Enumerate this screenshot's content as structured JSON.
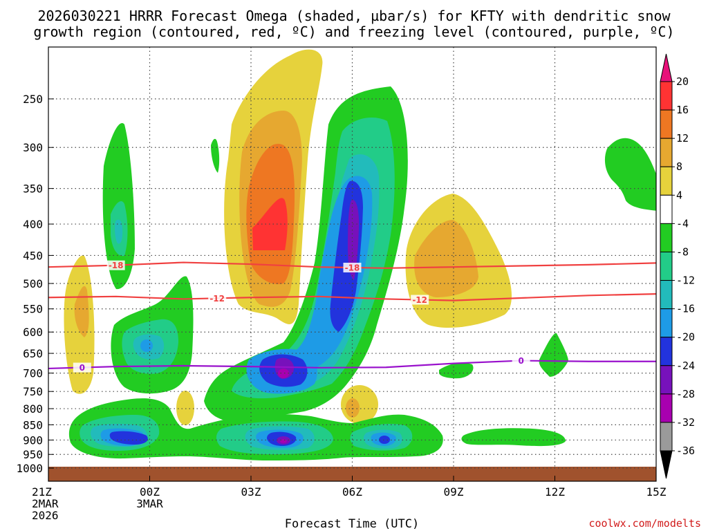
{
  "chart_data": {
    "type": "heatmap",
    "title_lines": [
      "2026030221 HRRR Forecast Omega (shaded, µbar/s) for KFTY with dendritic snow",
      "growth region (contoured, red, ºC) and freezing level (contoured, purple, ºC)"
    ],
    "xlabel": "Forecast Time (UTC)",
    "x_ticks": [
      {
        "hour": 0,
        "lines": [
          "21Z",
          "2MAR",
          "2026"
        ]
      },
      {
        "hour": 3,
        "lines": [
          "00Z",
          "3MAR"
        ]
      },
      {
        "hour": 6,
        "lines": [
          "03Z"
        ]
      },
      {
        "hour": 9,
        "lines": [
          "06Z"
        ]
      },
      {
        "hour": 12,
        "lines": [
          "09Z"
        ]
      },
      {
        "hour": 15,
        "lines": [
          "12Z"
        ]
      },
      {
        "hour": 18,
        "lines": [
          "15Z"
        ]
      }
    ],
    "xlim_hours": [
      0,
      18
    ],
    "y_ticks": [
      250,
      300,
      350,
      400,
      450,
      500,
      550,
      600,
      650,
      700,
      750,
      800,
      850,
      900,
      950,
      1000
    ],
    "ylim_hPa": [
      1000,
      200
    ],
    "colorbar": {
      "levels": [
        20,
        16,
        12,
        8,
        4,
        -4,
        -8,
        -12,
        -16,
        -20,
        -24,
        -28,
        -32,
        -36
      ],
      "colors": [
        "#ff3333",
        "#ee7722",
        "#e6a830",
        "#e6d23c",
        "#ffffff",
        "#22cc22",
        "#22cc88",
        "#22bbbb",
        "#1e9be6",
        "#2233dd",
        "#7711bb",
        "#a800b0",
        "#9a9a9a"
      ],
      "top_arrow_color": "#e8117a",
      "bottom_arrow_color": "#000000"
    },
    "contours": [
      {
        "name": "dendritic -18C",
        "color": "#f04040",
        "label": "-18",
        "hours": [
          0,
          2,
          4,
          6,
          8,
          10,
          12,
          14,
          16,
          18
        ],
        "pressure": [
          470,
          467,
          462,
          465,
          470,
          472,
          470,
          468,
          466,
          463
        ],
        "label_hours": [
          2.0,
          9.0
        ]
      },
      {
        "name": "dendritic -12C",
        "color": "#f04040",
        "label": "-12",
        "hours": [
          0,
          2,
          4,
          6,
          8,
          10,
          12,
          14,
          16,
          18
        ],
        "pressure": [
          527,
          525,
          530,
          527,
          525,
          530,
          533,
          528,
          523,
          520
        ],
        "label_hours": [
          5.0,
          11.0
        ]
      },
      {
        "name": "freezing level 0C",
        "color": "#9911cc",
        "label": "0",
        "hours": [
          0,
          2,
          4,
          6,
          8,
          10,
          12,
          14,
          16,
          18
        ],
        "pressure": [
          688,
          683,
          681,
          683,
          686,
          685,
          675,
          668,
          670,
          670
        ],
        "label_hours": [
          1.0,
          14.0
        ]
      }
    ],
    "ground_color": "#a0522d",
    "omega_features": [
      {
        "desc": "ascent core near 400 hPa",
        "hour": 9.0,
        "pressure": 400,
        "max_upward_ubar_s": -28
      },
      {
        "desc": "ascent core near 900 hPa",
        "hour": 7.0,
        "pressure": 900,
        "max_upward_ubar_s": -28
      },
      {
        "desc": "subsidence max near 400 hPa",
        "hour": 6.5,
        "pressure": 400,
        "max_downward_ubar_s": 20
      },
      {
        "desc": "subsidence near 450 hPa",
        "hour": 12.0,
        "pressure": 450,
        "max_downward_ubar_s": 12
      }
    ]
  },
  "credit": "coolwx.com/modelts"
}
